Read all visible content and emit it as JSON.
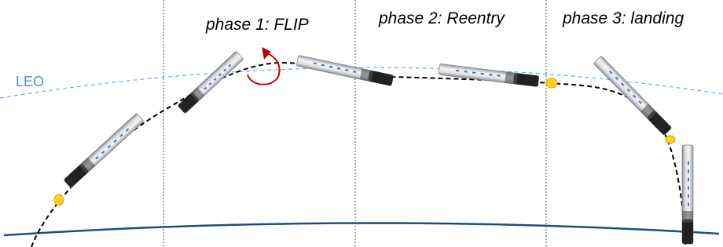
{
  "labels": {
    "orbit": "LEO",
    "phases": [
      "phase 1: FLIP",
      "phase 2: Reentry",
      "phase 3: landing"
    ]
  }
}
